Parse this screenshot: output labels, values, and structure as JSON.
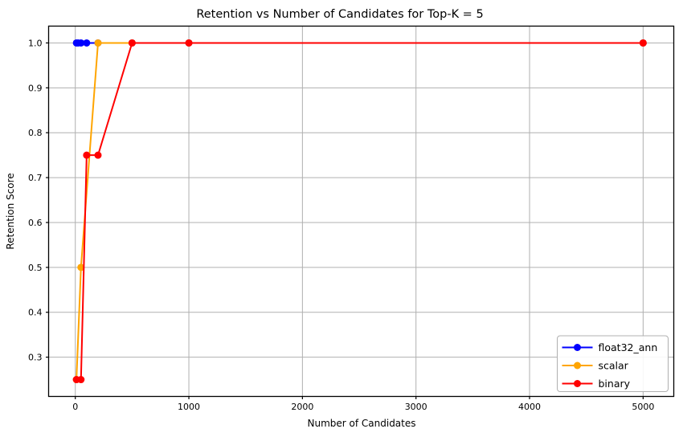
{
  "chart_data": {
    "type": "line",
    "title": "Retention vs Number of Candidates for Top-K = 5",
    "xlabel": "Number of Candidates",
    "ylabel": "Retention Score",
    "xlim": [
      -235,
      5270
    ],
    "ylim": [
      0.2125,
      1.0375
    ],
    "xticks": [
      0,
      1000,
      2000,
      3000,
      4000,
      5000
    ],
    "yticks": [
      0.3,
      0.4,
      0.5,
      0.6,
      0.7,
      0.8,
      0.9,
      1.0
    ],
    "grid": true,
    "legend_position": "lower right",
    "series": [
      {
        "name": "float32_ann",
        "color": "#0000ff",
        "x": [
          10,
          25,
          50,
          100,
          200,
          500,
          1000,
          5000
        ],
        "y": [
          1.0,
          1.0,
          1.0,
          1.0,
          1.0,
          1.0,
          1.0,
          1.0
        ]
      },
      {
        "name": "scalar",
        "color": "#ffa500",
        "x": [
          10,
          50,
          200,
          500,
          1000,
          5000
        ],
        "y": [
          0.25,
          0.5,
          1.0,
          1.0,
          1.0,
          1.0
        ]
      },
      {
        "name": "binary",
        "color": "#ff0000",
        "x": [
          10,
          50,
          100,
          200,
          500,
          1000,
          5000
        ],
        "y": [
          0.25,
          0.25,
          0.75,
          0.75,
          1.0,
          1.0,
          1.0
        ]
      }
    ]
  },
  "style_colors": {
    "grid": "#b0b0b0",
    "spine": "#000000",
    "background": "#ffffff",
    "legend_border": "#b0b0b0",
    "legend_background": "#ffffff"
  }
}
